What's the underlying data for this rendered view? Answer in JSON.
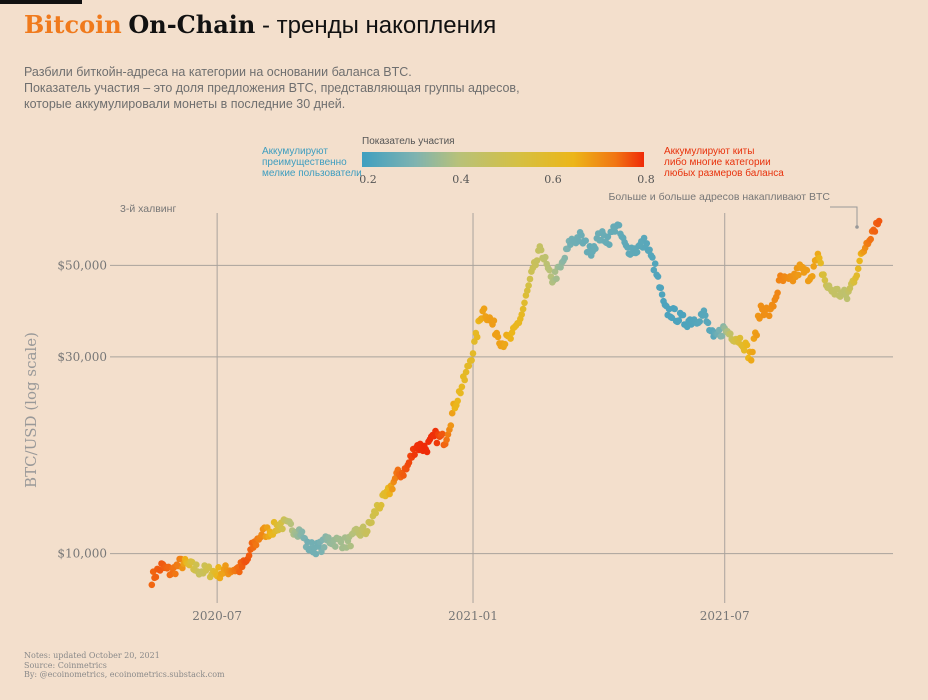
{
  "title": {
    "part1": "Bitcoin",
    "part2": "On-Chain",
    "part3": "- тренды накопления"
  },
  "subtitle": [
    "Разбили биткойн-адреса на категории на основании баланса BTC.",
    "Показатель участия – это доля предложения BTC, представляющая группы адресов,",
    "которые аккумулировали монеты в последние 30 дней."
  ],
  "legend": {
    "title": "Показатель участия",
    "ticks": [
      "0.2",
      "0.4",
      "0.6",
      "0.8"
    ],
    "left_label": [
      "Аккумулируют",
      "преимущественно",
      "мелкие пользователи"
    ],
    "right_label": [
      "Аккумулируют киты",
      "либо многие категории",
      "любых размеров баланса"
    ],
    "colors": {
      "low": "#3f9fc0",
      "mid": "#d4c044",
      "high": "#ef2a08"
    }
  },
  "footer": [
    "Notes: updated October 20, 2021",
    "Source: Coinmetrics",
    "By: @ecoinometrics, ecoinometrics.substack.com"
  ],
  "chart_data": {
    "type": "scatter",
    "title": "",
    "xlabel": "",
    "ylabel": "BTC/USD (log scale)",
    "y_scale": "log",
    "ylim": [
      7300,
      72000
    ],
    "xlim": [
      "2020-04-20",
      "2021-10-30"
    ],
    "x_ticks": [
      {
        "date": "2020-07-01",
        "label": "2020-07"
      },
      {
        "date": "2021-01-01",
        "label": "2021-01"
      },
      {
        "date": "2021-07-01",
        "label": "2021-07"
      }
    ],
    "y_ticks": [
      {
        "value": 10000,
        "label": "$10,000"
      },
      {
        "value": 30000,
        "label": "$30,000"
      },
      {
        "value": 50000,
        "label": "$50,000"
      }
    ],
    "grid": true,
    "color_scale": {
      "min": 0.2,
      "max": 0.8
    },
    "annotations": [
      {
        "text": "3-й халвинг",
        "date": "2020-05-11"
      },
      {
        "text": "Больше и больше адресов накапливают BTC",
        "date": "2021-10-20"
      }
    ],
    "anchors": [
      [
        "2020-05-15",
        8700,
        0.72
      ],
      [
        "2020-05-22",
        9300,
        0.74
      ],
      [
        "2020-05-29",
        9000,
        0.71
      ],
      [
        "2020-06-05",
        9500,
        0.68
      ],
      [
        "2020-06-12",
        9300,
        0.52
      ],
      [
        "2020-06-19",
        9100,
        0.45
      ],
      [
        "2020-06-26",
        9050,
        0.5
      ],
      [
        "2020-07-03",
        9000,
        0.62
      ],
      [
        "2020-07-10",
        9150,
        0.66
      ],
      [
        "2020-07-17",
        9200,
        0.72
      ],
      [
        "2020-07-22",
        9500,
        0.75
      ],
      [
        "2020-07-26",
        10300,
        0.72
      ],
      [
        "2020-08-02",
        11200,
        0.67
      ],
      [
        "2020-08-09",
        11400,
        0.6
      ],
      [
        "2020-08-16",
        11800,
        0.5
      ],
      [
        "2020-08-23",
        11600,
        0.4
      ],
      [
        "2020-08-30",
        11300,
        0.32
      ],
      [
        "2020-09-04",
        10400,
        0.28
      ],
      [
        "2020-09-12",
        10300,
        0.28
      ],
      [
        "2020-09-19",
        10800,
        0.33
      ],
      [
        "2020-09-26",
        10700,
        0.36
      ],
      [
        "2020-10-03",
        10600,
        0.37
      ],
      [
        "2020-10-10",
        11200,
        0.42
      ],
      [
        "2020-10-17",
        11400,
        0.46
      ],
      [
        "2020-10-24",
        12900,
        0.5
      ],
      [
        "2020-10-31",
        13800,
        0.57
      ],
      [
        "2020-11-07",
        15400,
        0.7
      ],
      [
        "2020-11-14",
        16000,
        0.75
      ],
      [
        "2020-11-21",
        18300,
        0.79
      ],
      [
        "2020-11-28",
        18000,
        0.8
      ],
      [
        "2020-12-05",
        19200,
        0.79
      ],
      [
        "2020-12-12",
        18900,
        0.72
      ],
      [
        "2020-12-19",
        23000,
        0.6
      ],
      [
        "2020-12-26",
        26500,
        0.57
      ],
      [
        "2021-01-02",
        32000,
        0.56
      ],
      [
        "2021-01-08",
        39500,
        0.63
      ],
      [
        "2021-01-15",
        36000,
        0.64
      ],
      [
        "2021-01-22",
        32500,
        0.63
      ],
      [
        "2021-01-29",
        33500,
        0.6
      ],
      [
        "2021-02-05",
        38000,
        0.58
      ],
      [
        "2021-02-12",
        47000,
        0.47
      ],
      [
        "2021-02-19",
        55000,
        0.44
      ],
      [
        "2021-02-26",
        46000,
        0.4
      ],
      [
        "2021-03-05",
        49000,
        0.34
      ],
      [
        "2021-03-12",
        57000,
        0.28
      ],
      [
        "2021-03-19",
        58500,
        0.27
      ],
      [
        "2021-03-26",
        54000,
        0.26
      ],
      [
        "2021-04-02",
        58800,
        0.27
      ],
      [
        "2021-04-09",
        58000,
        0.26
      ],
      [
        "2021-04-14",
        63000,
        0.26
      ],
      [
        "2021-04-21",
        55000,
        0.25
      ],
      [
        "2021-04-28",
        54500,
        0.25
      ],
      [
        "2021-05-05",
        57000,
        0.24
      ],
      [
        "2021-05-12",
        49000,
        0.23
      ],
      [
        "2021-05-19",
        39000,
        0.22
      ],
      [
        "2021-05-26",
        38000,
        0.22
      ],
      [
        "2021-06-02",
        36500,
        0.22
      ],
      [
        "2021-06-09",
        37000,
        0.23
      ],
      [
        "2021-06-16",
        38000,
        0.24
      ],
      [
        "2021-06-23",
        33000,
        0.24
      ],
      [
        "2021-06-30",
        35000,
        0.32
      ],
      [
        "2021-07-07",
        33800,
        0.48
      ],
      [
        "2021-07-14",
        32700,
        0.56
      ],
      [
        "2021-07-20",
        29800,
        0.62
      ],
      [
        "2021-07-27",
        39500,
        0.66
      ],
      [
        "2021-08-03",
        38200,
        0.66
      ],
      [
        "2021-08-10",
        46000,
        0.68
      ],
      [
        "2021-08-17",
        45500,
        0.66
      ],
      [
        "2021-08-24",
        49000,
        0.64
      ],
      [
        "2021-08-31",
        47000,
        0.64
      ],
      [
        "2021-09-06",
        52000,
        0.62
      ],
      [
        "2021-09-13",
        44000,
        0.45
      ],
      [
        "2021-09-20",
        43000,
        0.44
      ],
      [
        "2021-09-27",
        42000,
        0.42
      ],
      [
        "2021-10-04",
        48500,
        0.56
      ],
      [
        "2021-10-11",
        57000,
        0.68
      ],
      [
        "2021-10-16",
        61500,
        0.72
      ],
      [
        "2021-10-20",
        64000,
        0.74
      ]
    ]
  }
}
